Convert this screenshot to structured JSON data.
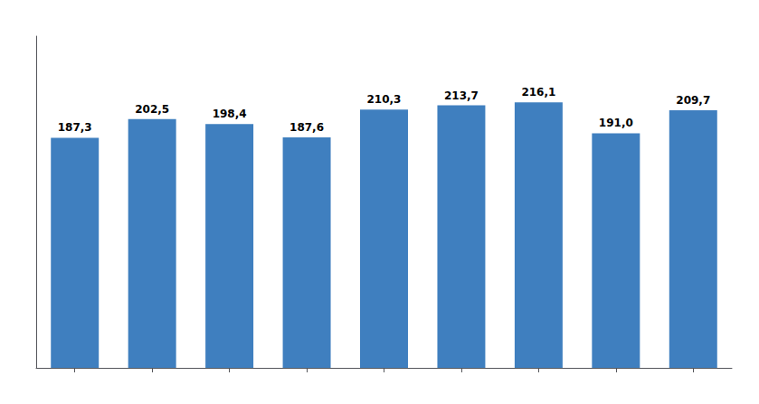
{
  "chart_data": {
    "type": "bar",
    "categories": [
      null,
      null,
      null,
      null,
      null,
      null,
      null,
      null,
      null
    ],
    "values": [
      187.3,
      202.5,
      198.4,
      187.6,
      210.3,
      213.7,
      216.1,
      191.0,
      209.7
    ],
    "value_labels": [
      "187,3",
      "202,5",
      "198,4",
      "187,6",
      "210,3",
      "213,7",
      "216,1",
      "191,0",
      "209,7"
    ],
    "color": "#3F7FBF",
    "ylim": [
      0,
      270
    ],
    "yticks": [],
    "grid": false,
    "data_labels": true,
    "tick_labels": false
  }
}
